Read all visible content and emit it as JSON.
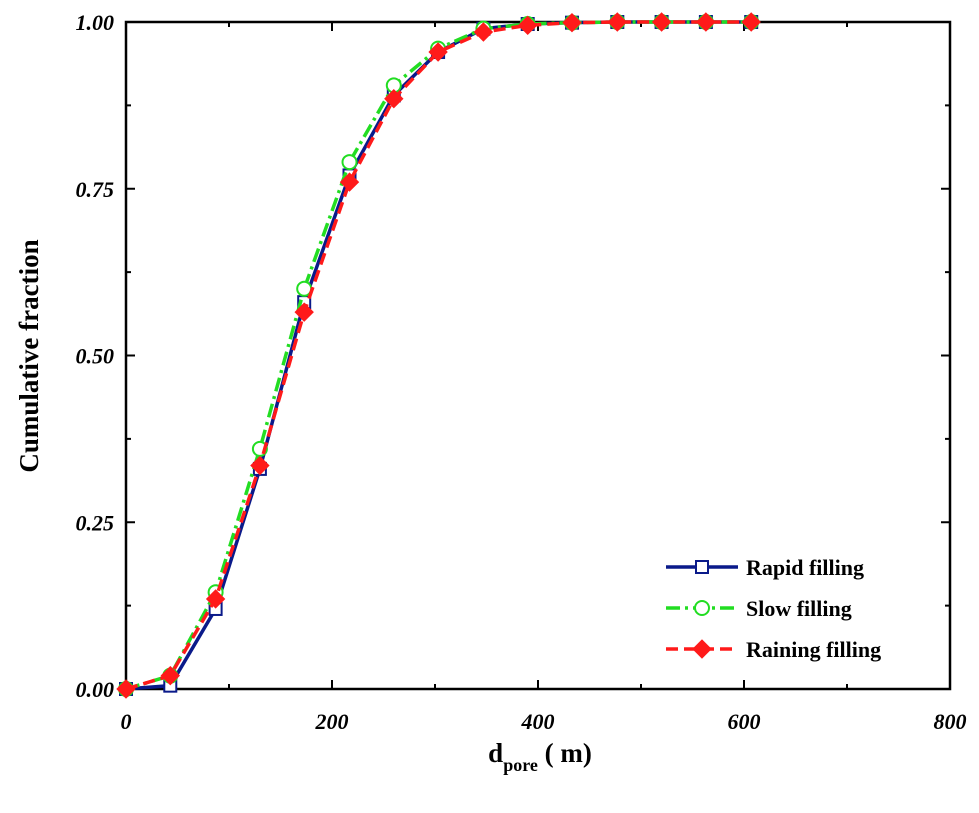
{
  "chart_data": {
    "type": "line",
    "xlabel": {
      "main": "d",
      "subscript": "pore",
      "rest": " (  m)"
    },
    "ylabel": "Cumulative fraction",
    "xlim": [
      0,
      800
    ],
    "ylim": [
      0,
      1.0
    ],
    "xticks": [
      0,
      200,
      400,
      600,
      800
    ],
    "xtick_labels": [
      "0",
      "200",
      "400",
      "600",
      "800"
    ],
    "yticks": [
      0,
      0.25,
      0.5,
      0.75,
      1.0
    ],
    "ytick_labels": [
      "0.00",
      "0.25",
      "0.50",
      "0.75",
      "1.00"
    ],
    "grid": false,
    "legend_position": "bottom-right",
    "x": [
      0,
      43,
      87,
      130,
      173,
      217,
      260,
      303,
      347,
      390,
      433,
      477,
      520,
      563,
      607
    ],
    "series": [
      {
        "name": "Rapid filling",
        "color": "#0a1a8a",
        "line": "solid",
        "marker": "open-square",
        "values": [
          0,
          0.005,
          0.12,
          0.33,
          0.58,
          0.77,
          0.89,
          0.955,
          0.99,
          0.997,
          0.999,
          1.0,
          1.0,
          1.0,
          1.0
        ]
      },
      {
        "name": "Slow filling",
        "color": "#22dd22",
        "line": "dash-dot",
        "marker": "open-circle",
        "values": [
          0,
          0.02,
          0.145,
          0.36,
          0.6,
          0.79,
          0.905,
          0.96,
          0.99,
          0.997,
          0.999,
          1.0,
          1.0,
          1.0,
          1.0
        ]
      },
      {
        "name": "Raining filling",
        "color": "#ff1a1a",
        "line": "dashed",
        "marker": "filled-diamond",
        "values": [
          0,
          0.02,
          0.135,
          0.335,
          0.565,
          0.76,
          0.885,
          0.955,
          0.985,
          0.995,
          0.999,
          1.0,
          1.0,
          1.0,
          1.0
        ]
      }
    ]
  }
}
